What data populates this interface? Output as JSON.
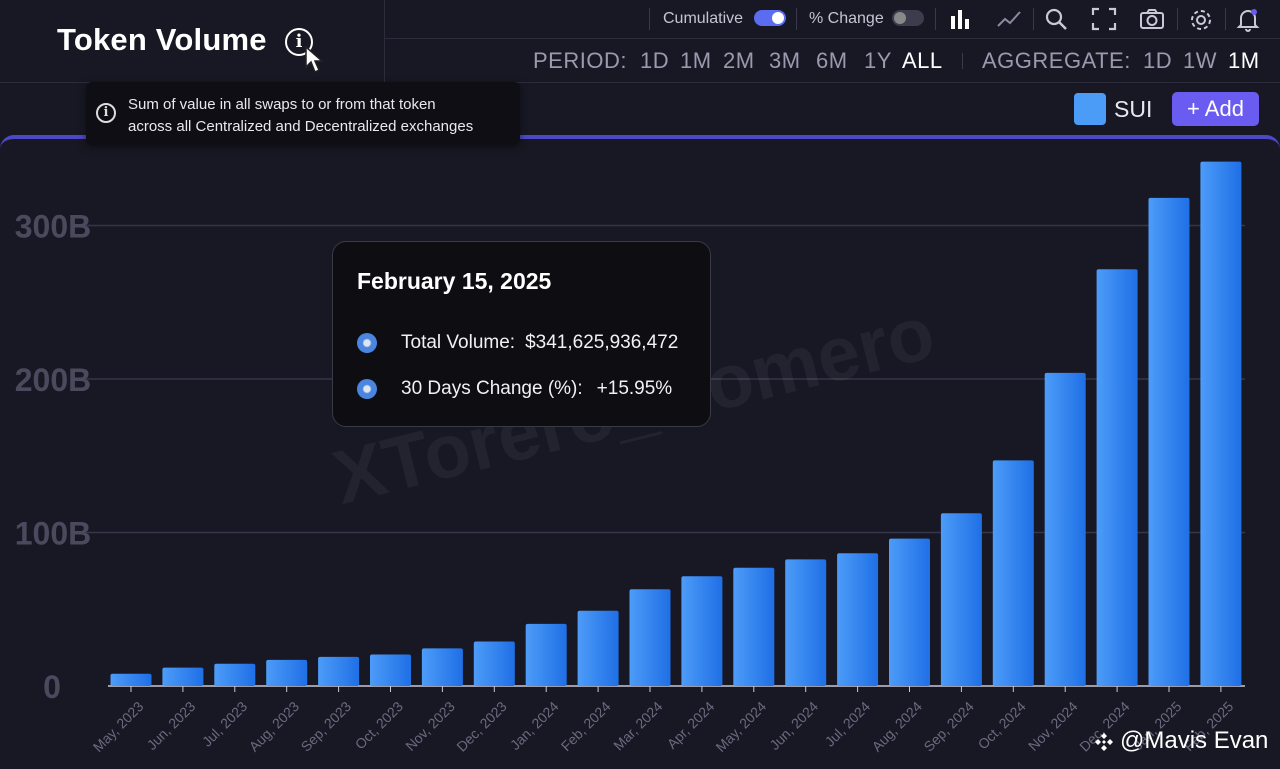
{
  "header": {
    "title": "Token Volume",
    "info_tooltip_line1": "Sum of value in all swaps to or from that token",
    "info_tooltip_line2": "across all Centralized and Decentralized exchanges"
  },
  "toolbar": {
    "cumulative_label": "Cumulative",
    "cumulative_on": true,
    "pct_change_label": "% Change",
    "pct_change_on": false,
    "icons": [
      "bar-chart-icon",
      "line-chart-icon",
      "search-icon",
      "fullscreen-icon",
      "camera-icon",
      "gear-icon",
      "bell-icon"
    ]
  },
  "period": {
    "label": "PERIOD:",
    "options": [
      "1D",
      "1M",
      "2M",
      "3M",
      "6M",
      "1Y",
      "ALL"
    ],
    "selected": "ALL"
  },
  "aggregate": {
    "label": "AGGREGATE:",
    "options": [
      "1D",
      "1W",
      "1M"
    ],
    "selected": "1M"
  },
  "legend": {
    "series_label": "SUI",
    "add_label": "+ Add"
  },
  "tooltip": {
    "date": "February 15, 2025",
    "total_volume_label": "Total Volume:",
    "total_volume_value": "$341,625,936,472",
    "change_label": "30 Days Change (%):",
    "change_value": "+15.95%"
  },
  "watermark": {
    "center_text": "XTorero_Romero",
    "corner_text": "@Mavis Evan"
  },
  "colors": {
    "bar": "#2f80ed",
    "accent": "#6a5cf0",
    "background": "#181824"
  },
  "chart_data": {
    "type": "bar",
    "categories": [
      "May, 2023",
      "Jun, 2023",
      "Jul, 2023",
      "Aug, 2023",
      "Sep, 2023",
      "Oct, 2023",
      "Nov, 2023",
      "Dec, 2023",
      "Jan, 2024",
      "Feb, 2024",
      "Mar, 2024",
      "Apr, 2024",
      "May, 2024",
      "Jun, 2024",
      "Jul, 2024",
      "Aug, 2024",
      "Sep, 2024",
      "Oct, 2024",
      "Nov, 2024",
      "Dec, 2024",
      "Jan, 2025",
      "Feb, 2025"
    ],
    "series": [
      {
        "name": "SUI",
        "values": [
          8,
          12,
          14.5,
          17,
          19,
          20.5,
          24.5,
          29,
          40.5,
          49,
          63,
          71.5,
          77,
          82.5,
          86.5,
          96,
          112.5,
          147,
          204,
          271.5,
          318,
          341.6
        ]
      }
    ],
    "yticks": [
      0,
      100,
      200,
      300
    ],
    "ytick_labels": [
      "0",
      "100B",
      "200B",
      "300B"
    ],
    "ylim": [
      0,
      342
    ],
    "ylabel": "",
    "xlabel": "",
    "grid": true,
    "unit": "B"
  }
}
